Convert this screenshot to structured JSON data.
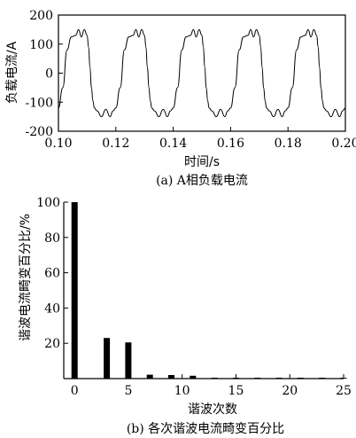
{
  "chart_data": [
    {
      "type": "line",
      "caption": "(a) A相负载电流",
      "xlabel": "时间/s",
      "ylabel": "负载电流/A",
      "xlim": [
        0.1,
        0.2
      ],
      "ylim": [
        -200,
        200
      ],
      "x_ticks": [
        "0.10",
        "0.12",
        "0.14",
        "0.16",
        "0.18",
        "0.20"
      ],
      "y_ticks": [
        "200",
        "100",
        "0",
        "-100",
        "-200"
      ],
      "series": [
        {
          "period": 0.02,
          "x": [
            0.1,
            0.1015,
            0.103,
            0.1045,
            0.106,
            0.107,
            0.108,
            0.109,
            0.11,
            0.1105,
            0.111,
            0.1115,
            0.112,
            0.1125,
            0.1135,
            0.115,
            0.1165,
            0.118,
            0.119,
            0.12
          ],
          "y": [
            -120,
            -50,
            80,
            125,
            130,
            150,
            125,
            150,
            130,
            90,
            20,
            -50,
            -95,
            -120,
            -130,
            -150,
            -125,
            -150,
            -130,
            -120
          ]
        }
      ]
    },
    {
      "type": "bar",
      "caption": "(b) 各次谐波电流畸变百分比",
      "xlabel": "谐波次数",
      "ylabel": "谐波电流畸变百分比/%",
      "xlim": [
        -1,
        25
      ],
      "ylim": [
        0,
        100
      ],
      "x_ticks": [
        "0",
        "5",
        "10",
        "15",
        "20",
        "25"
      ],
      "y_ticks": [
        "100",
        "80",
        "60",
        "40",
        "20"
      ],
      "x": [
        0,
        3,
        5,
        7,
        9,
        11,
        13,
        15,
        17,
        19,
        21,
        23,
        25
      ],
      "values": [
        100,
        23,
        20.5,
        2.2,
        2,
        1.6,
        0.5,
        0.4,
        0.4,
        0.3,
        0.3,
        0.2,
        0.2
      ]
    }
  ]
}
